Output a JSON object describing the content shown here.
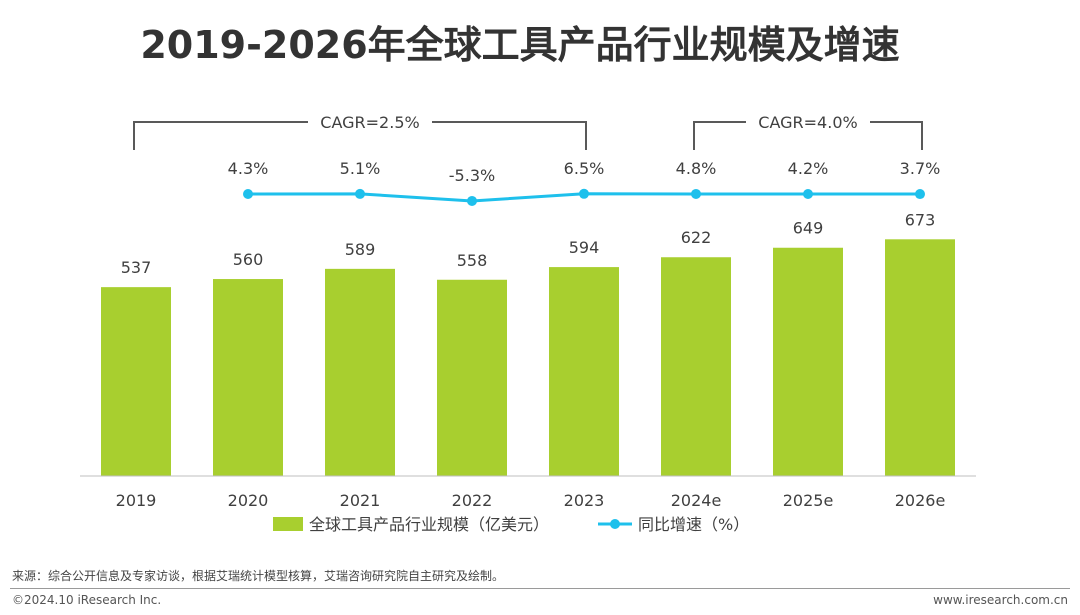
{
  "title": "2019-2026年全球工具产品行业规模及增速",
  "chart_data": {
    "type": "bar",
    "title": "2019-2026年全球工具产品行业规模及增速",
    "categories": [
      "2019",
      "2020",
      "2021",
      "2022",
      "2023",
      "2024e",
      "2025e",
      "2026e"
    ],
    "series": [
      {
        "name": "全球工具产品行业规模（亿美元）",
        "type": "bar",
        "color": "#a8cf2f",
        "values": [
          537,
          560,
          589,
          558,
          594,
          622,
          649,
          673
        ],
        "labels": [
          "537",
          "560",
          "589",
          "558",
          "594",
          "622",
          "649",
          "673"
        ]
      },
      {
        "name": "同比增速（%）",
        "type": "line",
        "color": "#1ec0ec",
        "values": [
          null,
          4.3,
          5.1,
          -5.3,
          6.5,
          4.8,
          4.2,
          3.7
        ],
        "labels": [
          "",
          "4.3%",
          "5.1%",
          "-5.3%",
          "6.5%",
          "4.8%",
          "4.2%",
          "3.7%"
        ]
      }
    ],
    "annotations": [
      {
        "text": "CAGR=2.5%",
        "from": "2019",
        "to": "2023"
      },
      {
        "text": "CAGR=4.0%",
        "from": "2024e",
        "to": "2026e"
      }
    ],
    "ylim": [
      0,
      700
    ],
    "legend": "bottom",
    "grid": false
  },
  "footer": {
    "source": "来源：综合公开信息及专家访谈，根据艾瑞统计模型核算，艾瑞咨询研究院自主研究及绘制。",
    "copyright": "©2024.10 iResearch Inc.",
    "website": "www.iresearch.com.cn"
  }
}
